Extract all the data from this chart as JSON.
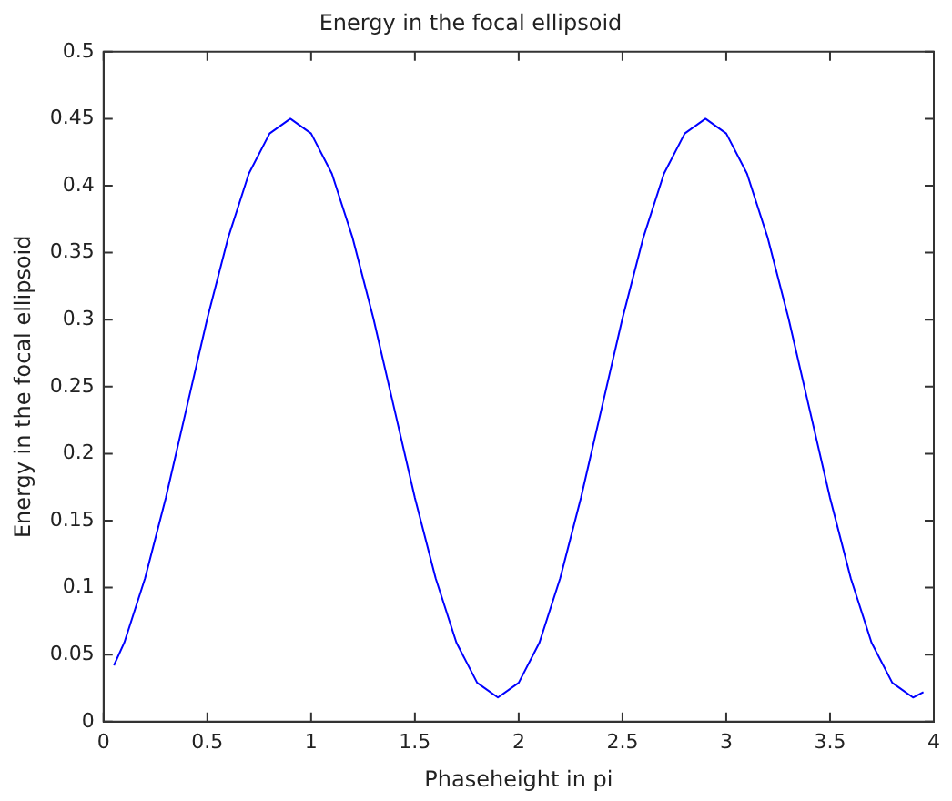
{
  "chart_data": {
    "type": "line",
    "title": "Energy in the focal ellipsoid",
    "xlabel": "Phaseheight in pi",
    "ylabel": "Energy in the focal ellipsoid",
    "x": [
      0.05,
      0.1,
      0.2,
      0.3,
      0.4,
      0.5,
      0.6,
      0.7,
      0.8,
      0.9,
      1.0,
      1.1,
      1.2,
      1.3,
      1.4,
      1.5,
      1.6,
      1.7,
      1.8,
      1.9,
      2.0,
      2.1,
      2.2,
      2.3,
      2.4,
      2.5,
      2.6,
      2.7,
      2.8,
      2.9,
      3.0,
      3.1,
      3.2,
      3.3,
      3.4,
      3.5,
      3.6,
      3.7,
      3.8,
      3.9,
      3.95
    ],
    "series": [
      {
        "color": "#0000ff",
        "values": [
          0.042,
          0.059,
          0.107,
          0.167,
          0.234,
          0.301,
          0.361,
          0.409,
          0.439,
          0.45,
          0.439,
          0.409,
          0.361,
          0.301,
          0.234,
          0.167,
          0.107,
          0.059,
          0.029,
          0.018,
          0.029,
          0.059,
          0.107,
          0.167,
          0.234,
          0.301,
          0.361,
          0.409,
          0.439,
          0.45,
          0.439,
          0.409,
          0.361,
          0.301,
          0.234,
          0.167,
          0.107,
          0.059,
          0.029,
          0.018,
          0.022
        ]
      }
    ],
    "xlim": [
      0,
      4
    ],
    "xticks": [
      0,
      0.5,
      1,
      1.5,
      2,
      2.5,
      3,
      3.5,
      4
    ],
    "ylim": [
      0,
      0.5
    ],
    "yticks": [
      0,
      0.05,
      0.1,
      0.15,
      0.2,
      0.25,
      0.3,
      0.35,
      0.4,
      0.45,
      0.5
    ],
    "grid": false,
    "legend": false,
    "marker": "none",
    "line_style": "solid"
  }
}
